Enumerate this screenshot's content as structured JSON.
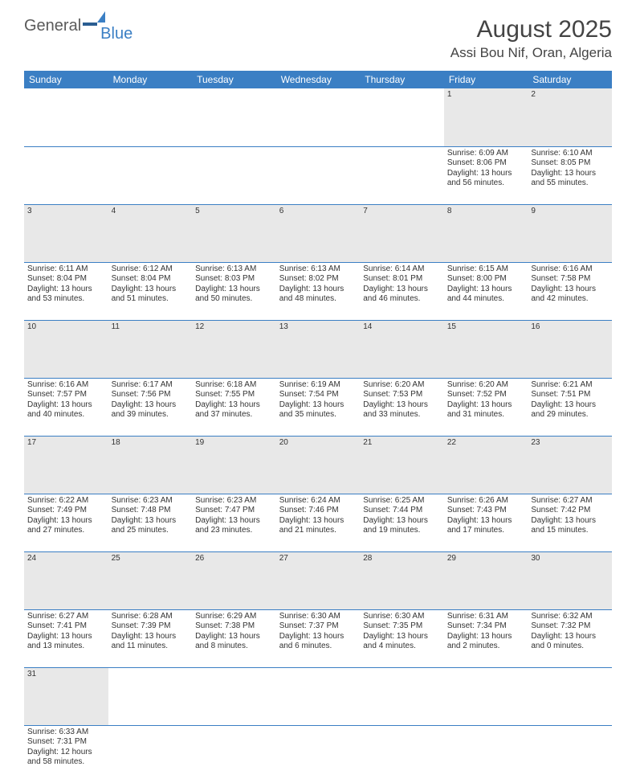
{
  "logo": {
    "text1": "General",
    "text2": "Blue"
  },
  "title": "August 2025",
  "location": "Assi Bou Nif, Oran, Algeria",
  "colors": {
    "header_bg": "#3b7fc4",
    "header_text": "#ffffff",
    "daynum_bg": "#e8e8e8",
    "cell_border": "#3b7fc4",
    "text": "#333333",
    "title_text": "#444444"
  },
  "daysOfWeek": [
    "Sunday",
    "Monday",
    "Tuesday",
    "Wednesday",
    "Thursday",
    "Friday",
    "Saturday"
  ],
  "weeks": [
    {
      "nums": [
        "",
        "",
        "",
        "",
        "",
        "1",
        "2"
      ],
      "cells": [
        null,
        null,
        null,
        null,
        null,
        {
          "sunrise": "6:09 AM",
          "sunset": "8:06 PM",
          "dl": "13 hours and 56 minutes."
        },
        {
          "sunrise": "6:10 AM",
          "sunset": "8:05 PM",
          "dl": "13 hours and 55 minutes."
        }
      ]
    },
    {
      "nums": [
        "3",
        "4",
        "5",
        "6",
        "7",
        "8",
        "9"
      ],
      "cells": [
        {
          "sunrise": "6:11 AM",
          "sunset": "8:04 PM",
          "dl": "13 hours and 53 minutes."
        },
        {
          "sunrise": "6:12 AM",
          "sunset": "8:04 PM",
          "dl": "13 hours and 51 minutes."
        },
        {
          "sunrise": "6:13 AM",
          "sunset": "8:03 PM",
          "dl": "13 hours and 50 minutes."
        },
        {
          "sunrise": "6:13 AM",
          "sunset": "8:02 PM",
          "dl": "13 hours and 48 minutes."
        },
        {
          "sunrise": "6:14 AM",
          "sunset": "8:01 PM",
          "dl": "13 hours and 46 minutes."
        },
        {
          "sunrise": "6:15 AM",
          "sunset": "8:00 PM",
          "dl": "13 hours and 44 minutes."
        },
        {
          "sunrise": "6:16 AM",
          "sunset": "7:58 PM",
          "dl": "13 hours and 42 minutes."
        }
      ]
    },
    {
      "nums": [
        "10",
        "11",
        "12",
        "13",
        "14",
        "15",
        "16"
      ],
      "cells": [
        {
          "sunrise": "6:16 AM",
          "sunset": "7:57 PM",
          "dl": "13 hours and 40 minutes."
        },
        {
          "sunrise": "6:17 AM",
          "sunset": "7:56 PM",
          "dl": "13 hours and 39 minutes."
        },
        {
          "sunrise": "6:18 AM",
          "sunset": "7:55 PM",
          "dl": "13 hours and 37 minutes."
        },
        {
          "sunrise": "6:19 AM",
          "sunset": "7:54 PM",
          "dl": "13 hours and 35 minutes."
        },
        {
          "sunrise": "6:20 AM",
          "sunset": "7:53 PM",
          "dl": "13 hours and 33 minutes."
        },
        {
          "sunrise": "6:20 AM",
          "sunset": "7:52 PM",
          "dl": "13 hours and 31 minutes."
        },
        {
          "sunrise": "6:21 AM",
          "sunset": "7:51 PM",
          "dl": "13 hours and 29 minutes."
        }
      ]
    },
    {
      "nums": [
        "17",
        "18",
        "19",
        "20",
        "21",
        "22",
        "23"
      ],
      "cells": [
        {
          "sunrise": "6:22 AM",
          "sunset": "7:49 PM",
          "dl": "13 hours and 27 minutes."
        },
        {
          "sunrise": "6:23 AM",
          "sunset": "7:48 PM",
          "dl": "13 hours and 25 minutes."
        },
        {
          "sunrise": "6:23 AM",
          "sunset": "7:47 PM",
          "dl": "13 hours and 23 minutes."
        },
        {
          "sunrise": "6:24 AM",
          "sunset": "7:46 PM",
          "dl": "13 hours and 21 minutes."
        },
        {
          "sunrise": "6:25 AM",
          "sunset": "7:44 PM",
          "dl": "13 hours and 19 minutes."
        },
        {
          "sunrise": "6:26 AM",
          "sunset": "7:43 PM",
          "dl": "13 hours and 17 minutes."
        },
        {
          "sunrise": "6:27 AM",
          "sunset": "7:42 PM",
          "dl": "13 hours and 15 minutes."
        }
      ]
    },
    {
      "nums": [
        "24",
        "25",
        "26",
        "27",
        "28",
        "29",
        "30"
      ],
      "cells": [
        {
          "sunrise": "6:27 AM",
          "sunset": "7:41 PM",
          "dl": "13 hours and 13 minutes."
        },
        {
          "sunrise": "6:28 AM",
          "sunset": "7:39 PM",
          "dl": "13 hours and 11 minutes."
        },
        {
          "sunrise": "6:29 AM",
          "sunset": "7:38 PM",
          "dl": "13 hours and 8 minutes."
        },
        {
          "sunrise": "6:30 AM",
          "sunset": "7:37 PM",
          "dl": "13 hours and 6 minutes."
        },
        {
          "sunrise": "6:30 AM",
          "sunset": "7:35 PM",
          "dl": "13 hours and 4 minutes."
        },
        {
          "sunrise": "6:31 AM",
          "sunset": "7:34 PM",
          "dl": "13 hours and 2 minutes."
        },
        {
          "sunrise": "6:32 AM",
          "sunset": "7:32 PM",
          "dl": "13 hours and 0 minutes."
        }
      ]
    },
    {
      "nums": [
        "31",
        "",
        "",
        "",
        "",
        "",
        ""
      ],
      "cells": [
        {
          "sunrise": "6:33 AM",
          "sunset": "7:31 PM",
          "dl": "12 hours and 58 minutes."
        },
        null,
        null,
        null,
        null,
        null,
        null
      ]
    }
  ],
  "labels": {
    "sunrise": "Sunrise:",
    "sunset": "Sunset:",
    "daylight": "Daylight:"
  }
}
